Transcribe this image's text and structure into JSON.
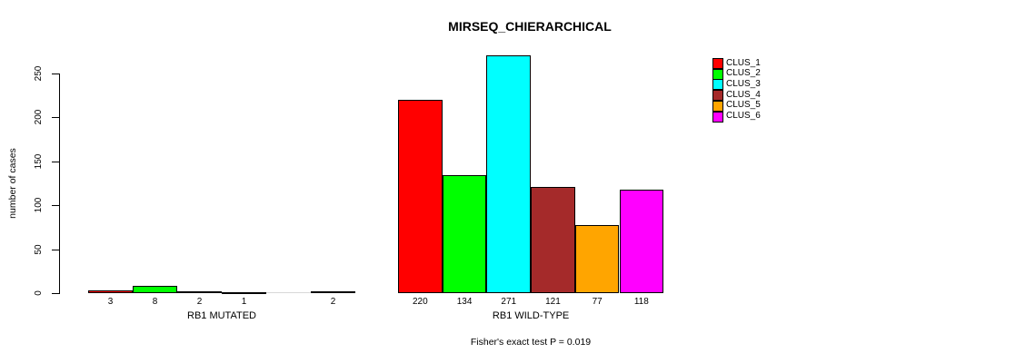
{
  "chart_data": {
    "type": "bar",
    "title": "MIRSEQ_CHIERARCHICAL",
    "ylabel": "number of cases",
    "xlabel": "",
    "footer": "Fisher's exact test P = 0.019",
    "yticks": [
      0,
      50,
      100,
      150,
      200,
      250
    ],
    "ylim": [
      0,
      271
    ],
    "grid": false,
    "legend_position": "right",
    "series": [
      {
        "name": "CLUS_1",
        "color": "#FF0000"
      },
      {
        "name": "CLUS_2",
        "color": "#00FF00"
      },
      {
        "name": "CLUS_3",
        "color": "#00FFFF"
      },
      {
        "name": "CLUS_4",
        "color": "#A52A2A"
      },
      {
        "name": "CLUS_5",
        "color": "#FFA500"
      },
      {
        "name": "CLUS_6",
        "color": "#FF00FF"
      }
    ],
    "groups": [
      {
        "label": "RB1 MUTATED",
        "values": [
          3,
          8,
          2,
          1,
          0,
          2
        ],
        "value_labels": [
          "3",
          "8",
          "2",
          "1",
          "",
          "2"
        ]
      },
      {
        "label": "RB1 WILD-TYPE",
        "values": [
          220,
          134,
          271,
          121,
          77,
          118
        ],
        "value_labels": [
          "220",
          "134",
          "271",
          "121",
          "77",
          "118"
        ]
      }
    ]
  }
}
